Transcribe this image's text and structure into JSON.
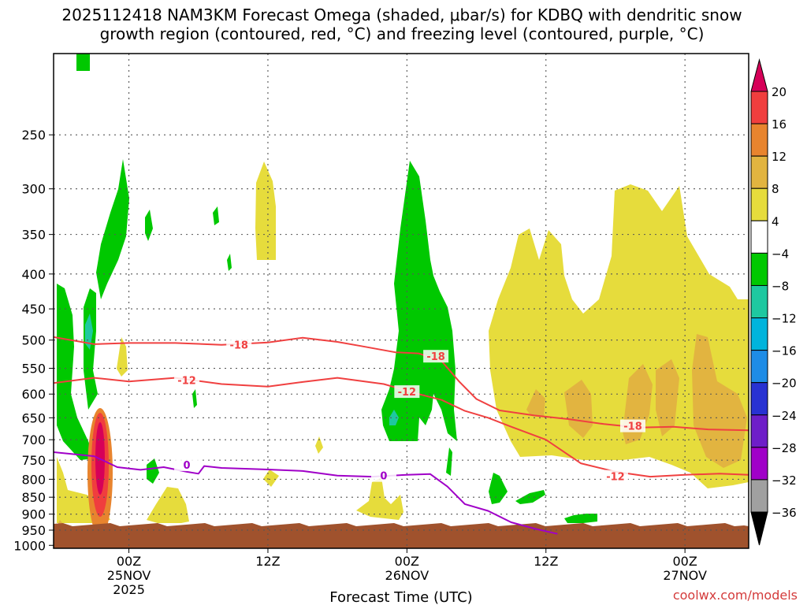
{
  "chart_data": {
    "type": "heatmap",
    "title_line1": "2025112418 NAM3KM Forecast Omega (shaded, μbar/s) for KDBQ with dendritic snow",
    "title_line2": "growth region (contoured, red, °C) and freezing level (contoured, purple, °C)",
    "xlabel": "Forecast Time (UTC)",
    "credit": "coolwx.com/models",
    "y_ticks": [
      250,
      300,
      350,
      400,
      450,
      500,
      550,
      600,
      650,
      700,
      750,
      800,
      850,
      900,
      950,
      1000
    ],
    "y_range_hpa": [
      1010,
      190
    ],
    "x_range_hours": [
      -6.5,
      53.5
    ],
    "x_ticks": [
      {
        "hour": 0,
        "line1": "00Z",
        "line2": "25NOV",
        "line3": "2025"
      },
      {
        "hour": 12,
        "line1": "12Z",
        "line2": "",
        "line3": ""
      },
      {
        "hour": 24,
        "line1": "00Z",
        "line2": "26NOV",
        "line3": ""
      },
      {
        "hour": 36,
        "line1": "12Z",
        "line2": "",
        "line3": ""
      },
      {
        "hour": 48,
        "line1": "00Z",
        "line2": "27NOV",
        "line3": ""
      }
    ],
    "grid": true,
    "ground_color": "#a0522d",
    "colorbar": {
      "ticks": [
        "20",
        "16",
        "12",
        "8",
        "4",
        "−4",
        "−8",
        "−12",
        "−16",
        "−20",
        "−24",
        "−28",
        "−32",
        "−36"
      ],
      "colors": [
        "#d60058",
        "#f03e3e",
        "#e8842e",
        "#e2b440",
        "#e6dc3c",
        "#ffffff",
        "#00c800",
        "#1ec8a0",
        "#00b4dc",
        "#1e8ce6",
        "#2832d2",
        "#6e1ec8",
        "#a000c8",
        "#a0a0a0",
        "#000000"
      ]
    },
    "contours": [
      {
        "level": "-18",
        "color": "#f04040",
        "points": [
          [
            -6.5,
            495
          ],
          [
            -3,
            507
          ],
          [
            0,
            505
          ],
          [
            4,
            505
          ],
          [
            8,
            508
          ],
          [
            12,
            504
          ],
          [
            15,
            496
          ],
          [
            18,
            503
          ],
          [
            20,
            510
          ],
          [
            23,
            521
          ],
          [
            25,
            523
          ],
          [
            27,
            537
          ],
          [
            28.5,
            575
          ],
          [
            30,
            610
          ],
          [
            32,
            634
          ],
          [
            35,
            645
          ],
          [
            38,
            653
          ],
          [
            41,
            664
          ],
          [
            44,
            672
          ],
          [
            47,
            670
          ],
          [
            50,
            676
          ],
          [
            53.5,
            678
          ]
        ],
        "labels": [
          [
            9.5,
            508
          ],
          [
            26.5,
            528
          ],
          [
            43.5,
            668
          ]
        ]
      },
      {
        "level": "-12",
        "color": "#f04040",
        "points": [
          [
            -6.5,
            578
          ],
          [
            -3,
            568
          ],
          [
            0,
            575
          ],
          [
            4,
            568
          ],
          [
            8,
            580
          ],
          [
            12,
            585
          ],
          [
            15,
            576
          ],
          [
            18,
            568
          ],
          [
            22,
            580
          ],
          [
            25,
            600
          ],
          [
            27,
            612
          ],
          [
            29,
            635
          ],
          [
            31,
            650
          ],
          [
            33,
            670
          ],
          [
            36,
            700
          ],
          [
            39,
            758
          ],
          [
            42,
            780
          ],
          [
            45,
            793
          ],
          [
            48,
            788
          ],
          [
            51,
            785
          ],
          [
            53.5,
            788
          ]
        ],
        "labels": [
          [
            5,
            572
          ],
          [
            24,
            595
          ],
          [
            42,
            792
          ]
        ]
      },
      {
        "level": "0",
        "color": "#a000c8",
        "points": [
          [
            -6.5,
            730
          ],
          [
            -3,
            740
          ],
          [
            -1,
            768
          ],
          [
            1,
            775
          ],
          [
            3,
            768
          ],
          [
            5,
            780
          ],
          [
            6,
            785
          ],
          [
            6.5,
            765
          ],
          [
            8,
            770
          ],
          [
            12,
            774
          ],
          [
            15,
            778
          ],
          [
            18,
            790
          ],
          [
            21,
            793
          ],
          [
            24,
            788
          ],
          [
            26,
            786
          ],
          [
            27.5,
            820
          ],
          [
            29,
            870
          ],
          [
            31,
            890
          ],
          [
            33,
            925
          ],
          [
            35,
            945
          ],
          [
            37,
            962
          ]
        ],
        "labels": [
          [
            5,
            762
          ],
          [
            22,
            790
          ]
        ]
      }
    ]
  }
}
